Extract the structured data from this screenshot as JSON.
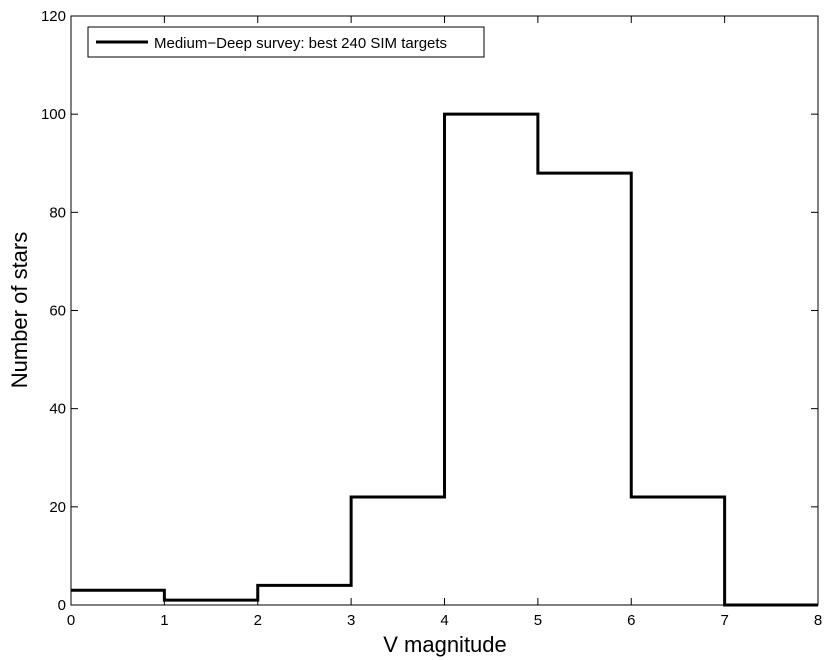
{
  "chart_data": {
    "type": "step",
    "title": "",
    "xlabel": "V magnitude",
    "ylabel": "Number of stars",
    "xlim": [
      0,
      8
    ],
    "ylim": [
      0,
      120
    ],
    "xticks": [
      0,
      1,
      2,
      3,
      4,
      5,
      6,
      7,
      8
    ],
    "yticks": [
      0,
      20,
      40,
      60,
      80,
      100,
      120
    ],
    "grid": false,
    "legend_position": "top-left",
    "series": [
      {
        "name": "Medium−Deep survey: best 240 SIM targets",
        "color": "#000000",
        "bin_edges": [
          0,
          1,
          2,
          3,
          4,
          5,
          6,
          7,
          8
        ],
        "counts": [
          3,
          1,
          4,
          22,
          100,
          88,
          22,
          0
        ]
      }
    ]
  }
}
